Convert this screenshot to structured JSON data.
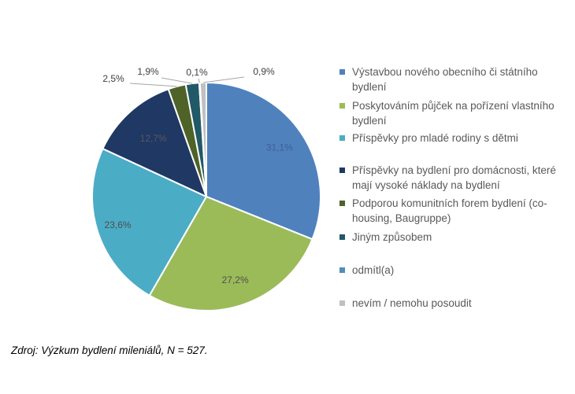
{
  "chart_data": {
    "type": "pie",
    "title": "",
    "categories": [
      "Výstavbou nového obecního či státního bydlení",
      "Poskytováním půjček na pořízení vlastního bydlení",
      "Příspěvky pro mladé rodiny s dětmi",
      "Příspěvky na bydlení pro domácnosti, které mají vysoké náklady na bydlení",
      "Podporou komunitních forem bydlení (co-housing, Baugruppe)",
      "Jiným způsobem",
      "odmítl(a)",
      "nevím / nemohu posoudit"
    ],
    "values": [
      31.1,
      27.2,
      23.6,
      12.7,
      2.5,
      1.9,
      0.1,
      0.9
    ],
    "value_labels": [
      "31,1%",
      "27,2%",
      "23,6%",
      "12,7%",
      "2,5%",
      "1,9%",
      "0,1%",
      "0,9%"
    ],
    "colors": [
      "#4F81BD",
      "#9BBB59",
      "#4BACC6",
      "#1F3864",
      "#4F6228",
      "#215967",
      "#4F8FB4",
      "#C0C0C0"
    ],
    "legend_position": "right"
  },
  "source_text": "Zdroj: Výzkum bydlení mileniálů, N = 527."
}
